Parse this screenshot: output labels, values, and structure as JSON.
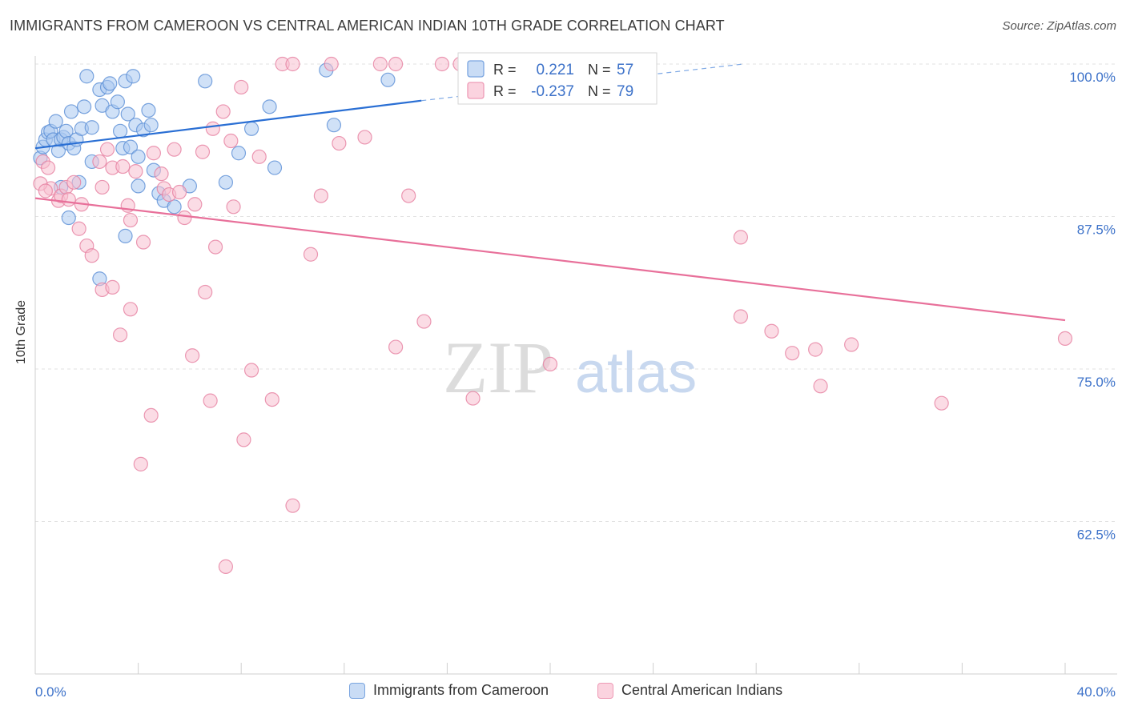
{
  "title": "IMMIGRANTS FROM CAMEROON VS CENTRAL AMERICAN INDIAN 10TH GRADE CORRELATION CHART",
  "source": "Source: ZipAtlas.com",
  "watermark": {
    "zip": "ZIP",
    "atlas": "atlas"
  },
  "legend_stats": [
    {
      "r_label": "R =",
      "r_value": "0.221",
      "n_label": "N =",
      "n_value": "57"
    },
    {
      "r_label": "R =",
      "r_value": "-0.237",
      "n_label": "N =",
      "n_value": "79"
    }
  ],
  "colors": {
    "blue_fill": "#aac8f0",
    "blue_stroke": "#5b8fd6",
    "blue_line": "#2a6fd4",
    "pink_fill": "#f7c0d0",
    "pink_stroke": "#e67fa0",
    "pink_line": "#e8709a",
    "axis_text": "#3d72c9"
  },
  "chart_data": {
    "type": "scatter",
    "title": "IMMIGRANTS FROM CAMEROON VS CENTRAL AMERICAN INDIAN 10TH GRADE CORRELATION CHART",
    "xlabel": "",
    "ylabel": "10th Grade",
    "xlim": [
      0,
      40
    ],
    "ylim": [
      50,
      100
    ],
    "x_tick_labels": [
      "0.0%",
      "40.0%"
    ],
    "y_ticks": [
      62.5,
      75.0,
      87.5,
      100.0
    ],
    "y_tick_labels": [
      "62.5%",
      "75.0%",
      "87.5%",
      "100.0%"
    ],
    "grid": true,
    "legend_position": "top-center",
    "series": [
      {
        "name": "Immigrants from Cameroon",
        "color": "#aac8f0",
        "points": [
          [
            0.2,
            92.3
          ],
          [
            0.3,
            93.2
          ],
          [
            0.4,
            93.8
          ],
          [
            0.5,
            94.4
          ],
          [
            0.6,
            94.5
          ],
          [
            0.7,
            93.8
          ],
          [
            0.8,
            95.3
          ],
          [
            0.9,
            92.9
          ],
          [
            1.0,
            93.8
          ],
          [
            1.1,
            94.0
          ],
          [
            1.2,
            94.5
          ],
          [
            1.3,
            93.5
          ],
          [
            1.5,
            93.1
          ],
          [
            1.6,
            93.8
          ],
          [
            1.4,
            96.1
          ],
          [
            1.8,
            94.7
          ],
          [
            1.9,
            96.5
          ],
          [
            2.0,
            99.0
          ],
          [
            2.2,
            94.8
          ],
          [
            2.5,
            97.9
          ],
          [
            2.6,
            96.6
          ],
          [
            2.8,
            98.1
          ],
          [
            2.9,
            98.4
          ],
          [
            3.0,
            96.1
          ],
          [
            3.2,
            96.9
          ],
          [
            3.3,
            94.5
          ],
          [
            3.4,
            93.1
          ],
          [
            3.5,
            98.6
          ],
          [
            3.6,
            95.9
          ],
          [
            3.7,
            93.2
          ],
          [
            3.8,
            99.0
          ],
          [
            3.9,
            95.0
          ],
          [
            4.0,
            92.4
          ],
          [
            4.2,
            94.6
          ],
          [
            4.4,
            96.2
          ],
          [
            4.5,
            95.0
          ],
          [
            4.0,
            90.0
          ],
          [
            4.6,
            91.3
          ],
          [
            4.8,
            89.4
          ],
          [
            5.0,
            88.8
          ],
          [
            5.4,
            88.3
          ],
          [
            6.0,
            90.0
          ],
          [
            6.6,
            98.6
          ],
          [
            7.4,
            90.3
          ],
          [
            7.9,
            92.7
          ],
          [
            8.4,
            94.7
          ],
          [
            9.1,
            96.5
          ],
          [
            9.3,
            91.5
          ],
          [
            11.3,
            99.5
          ],
          [
            11.6,
            95.0
          ],
          [
            13.7,
            98.7
          ],
          [
            3.5,
            85.9
          ],
          [
            2.5,
            82.4
          ],
          [
            1.3,
            87.4
          ],
          [
            1.7,
            90.3
          ],
          [
            1.0,
            89.9
          ],
          [
            2.2,
            92.0
          ]
        ]
      },
      {
        "name": "Central American Indians",
        "color": "#f7c0d0",
        "points": [
          [
            0.3,
            92.0
          ],
          [
            0.5,
            91.5
          ],
          [
            0.6,
            89.8
          ],
          [
            0.9,
            88.8
          ],
          [
            1.0,
            89.2
          ],
          [
            1.2,
            89.9
          ],
          [
            1.3,
            88.9
          ],
          [
            1.5,
            90.3
          ],
          [
            1.7,
            86.5
          ],
          [
            1.8,
            88.5
          ],
          [
            2.0,
            85.1
          ],
          [
            2.2,
            84.3
          ],
          [
            2.5,
            92.0
          ],
          [
            2.6,
            89.9
          ],
          [
            2.8,
            93.0
          ],
          [
            3.0,
            91.5
          ],
          [
            3.4,
            91.6
          ],
          [
            3.6,
            88.4
          ],
          [
            3.7,
            87.2
          ],
          [
            3.9,
            91.2
          ],
          [
            4.2,
            85.4
          ],
          [
            4.6,
            92.7
          ],
          [
            4.9,
            91.0
          ],
          [
            5.0,
            89.8
          ],
          [
            5.2,
            89.3
          ],
          [
            5.4,
            93.0
          ],
          [
            5.6,
            89.5
          ],
          [
            5.8,
            87.4
          ],
          [
            6.2,
            88.5
          ],
          [
            6.5,
            92.8
          ],
          [
            6.9,
            94.7
          ],
          [
            7.3,
            96.1
          ],
          [
            7.6,
            93.7
          ],
          [
            7.7,
            88.3
          ],
          [
            7.0,
            85.0
          ],
          [
            8.0,
            98.1
          ],
          [
            8.7,
            92.4
          ],
          [
            9.6,
            100.0
          ],
          [
            10.0,
            100.0
          ],
          [
            10.7,
            84.4
          ],
          [
            11.1,
            89.2
          ],
          [
            11.5,
            100.0
          ],
          [
            11.8,
            93.5
          ],
          [
            12.8,
            94.0
          ],
          [
            13.4,
            100.0
          ],
          [
            14.0,
            100.0
          ],
          [
            14.5,
            89.2
          ],
          [
            15.8,
            100.0
          ],
          [
            16.5,
            100.0
          ],
          [
            23.2,
            100.0
          ],
          [
            2.6,
            81.5
          ],
          [
            3.0,
            81.7
          ],
          [
            3.3,
            77.8
          ],
          [
            3.7,
            79.9
          ],
          [
            4.1,
            67.2
          ],
          [
            4.5,
            71.2
          ],
          [
            6.1,
            76.1
          ],
          [
            6.6,
            81.3
          ],
          [
            6.8,
            72.4
          ],
          [
            7.4,
            58.8
          ],
          [
            8.1,
            69.2
          ],
          [
            8.4,
            74.9
          ],
          [
            9.2,
            72.5
          ],
          [
            10.0,
            63.8
          ],
          [
            14.0,
            76.8
          ],
          [
            15.1,
            78.9
          ],
          [
            17.0,
            72.6
          ],
          [
            20.0,
            75.4
          ],
          [
            27.4,
            85.8
          ],
          [
            27.4,
            79.3
          ],
          [
            28.6,
            78.1
          ],
          [
            29.4,
            76.3
          ],
          [
            30.3,
            76.6
          ],
          [
            30.5,
            73.6
          ],
          [
            31.7,
            77.0
          ],
          [
            35.2,
            72.2
          ],
          [
            40.0,
            77.5
          ],
          [
            0.2,
            90.2
          ],
          [
            0.4,
            89.6
          ]
        ]
      }
    ],
    "trend_lines": [
      {
        "series": "Immigrants from Cameroon",
        "x": [
          0.0,
          15.0
        ],
        "y": [
          93.1,
          97.0
        ],
        "dashed_extension_to_x": 27.5,
        "dashed_extension_y": 100.0
      },
      {
        "series": "Central American Indians",
        "x": [
          0.0,
          40.0
        ],
        "y": [
          89.0,
          79.0
        ]
      }
    ]
  }
}
